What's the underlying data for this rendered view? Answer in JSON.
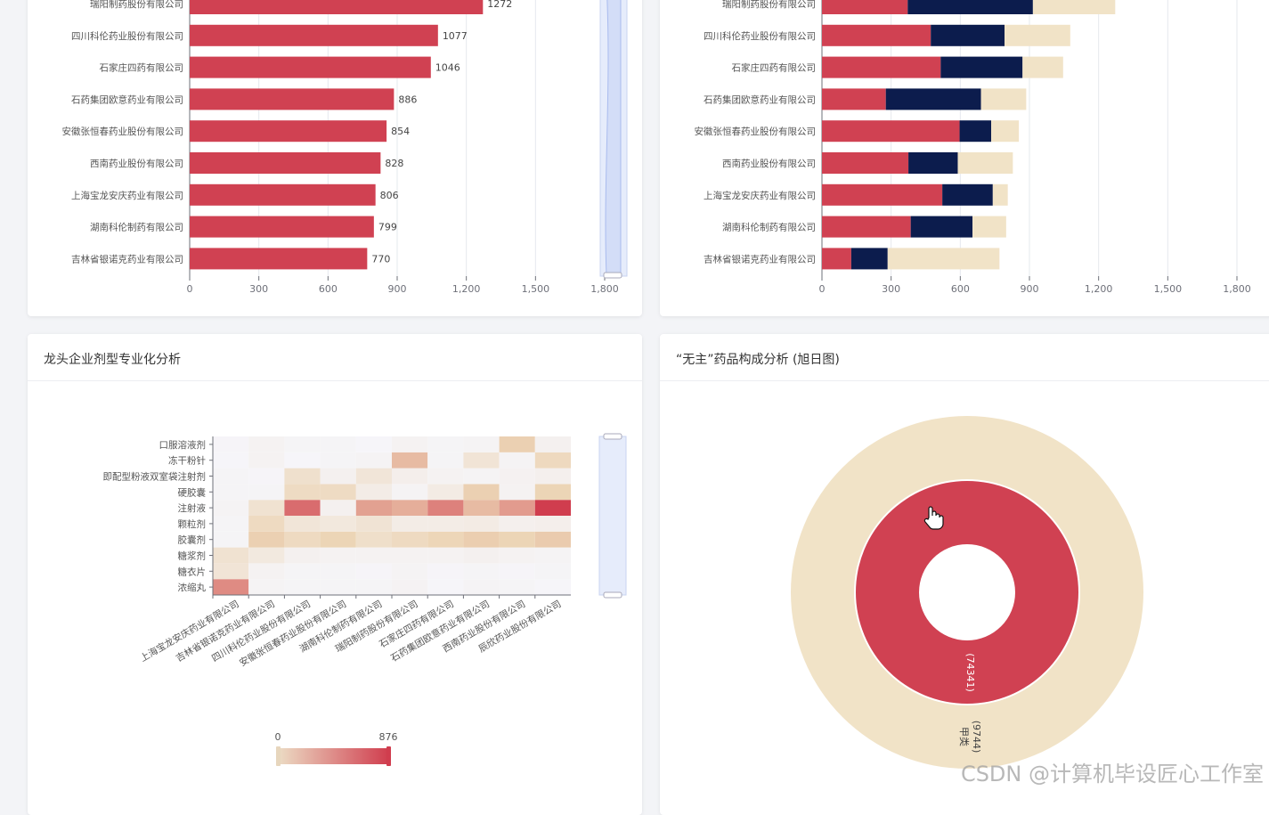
{
  "cards": {
    "heatmap_title": "龙头企业剂型专业化分析",
    "sunburst_title": "“无主”药品构成分析 (旭日图)"
  },
  "watermark": "CSDN @计算机毕设匠心工作室",
  "colors": {
    "red": "#d04152",
    "navy": "#0c1c4d",
    "beige": "#f1e3c7",
    "heat_low": "#f6f6fb",
    "heat_high": "#d03d4e"
  },
  "chart_data": [
    {
      "type": "bar",
      "orientation": "horizontal",
      "categories": [
        "瑞阳制药股份有限公司",
        "四川科伦药业股份有限公司",
        "石家庄四药有限公司",
        "石药集团欧意药业有限公司",
        "安徽张恒春药业股份有限公司",
        "西南药业股份有限公司",
        "上海宝龙安庆药业有限公司",
        "湖南科伦制药有限公司",
        "吉林省银诺克药业有限公司"
      ],
      "values": [
        1272,
        1077,
        1046,
        886,
        854,
        828,
        806,
        799,
        770
      ],
      "xlim": [
        0,
        1800
      ],
      "xticks": [
        "0",
        "300",
        "600",
        "900",
        "1,200",
        "1,500",
        "1,800"
      ],
      "grid": true,
      "has_zoom_slider": true
    },
    {
      "type": "bar",
      "orientation": "horizontal",
      "stacked": true,
      "categories": [
        "瑞阳制药股份有限公司",
        "四川科伦药业股份有限公司",
        "石家庄四药有限公司",
        "石药集团欧意药业有限公司",
        "安徽张恒春药业股份有限公司",
        "西南药业股份有限公司",
        "上海宝龙安庆药业有限公司",
        "湖南科伦制药有限公司",
        "吉林省银诺克药业有限公司"
      ],
      "series": [
        {
          "color": "#d04152",
          "values": [
            372,
            472,
            515,
            277,
            597,
            375,
            522,
            385,
            127
          ]
        },
        {
          "color": "#0c1c4d",
          "values": [
            543,
            320,
            355,
            413,
            137,
            214,
            219,
            268,
            158
          ]
        },
        {
          "color": "#f1e3c7",
          "values": [
            357,
            285,
            176,
            196,
            120,
            239,
            65,
            146,
            485
          ]
        }
      ],
      "xlim": [
        0,
        1800
      ],
      "xticks": [
        "0",
        "300",
        "600",
        "900",
        "1,200",
        "1,500",
        "1,800"
      ],
      "grid": true
    },
    {
      "type": "heatmap",
      "title": "龙头企业剂型专业化分析",
      "x": [
        "上海宝龙安庆药业有限公司",
        "吉林省银诺克药业有限公司",
        "四川科伦药业股份有限公司",
        "安徽张恒春药业股份有限公司",
        "湖南科伦制药有限公司",
        "瑞阳制药股份有限公司",
        "石家庄四药有限公司",
        "石药集团欧意药业有限公司",
        "西南药业股份有限公司",
        "辰欣药业股份有限公司"
      ],
      "y": [
        "浓缩丸",
        "糖衣片",
        "糖浆剂",
        "胶囊剂",
        "颗粒剂",
        "注射液",
        "硬胶囊",
        "即配型粉液双室袋注射剂",
        "冻干粉针",
        "口服溶液剂"
      ],
      "values": [
        [
          580,
          30,
          20,
          20,
          20,
          35,
          10,
          25,
          20,
          10
        ],
        [
          160,
          40,
          20,
          20,
          15,
          30,
          15,
          20,
          15,
          20
        ],
        [
          180,
          120,
          50,
          40,
          40,
          40,
          40,
          50,
          40,
          30
        ],
        [
          20,
          320,
          250,
          300,
          210,
          250,
          290,
          330,
          300,
          340
        ],
        [
          20,
          250,
          150,
          130,
          170,
          90,
          90,
          100,
          60,
          70
        ],
        [
          30,
          180,
          700,
          50,
          500,
          450,
          620,
          400,
          520,
          876
        ],
        [
          20,
          20,
          240,
          240,
          90,
          30,
          100,
          320,
          40,
          300
        ],
        [
          20,
          15,
          200,
          50,
          150,
          70,
          40,
          30,
          45,
          60
        ],
        [
          10,
          40,
          10,
          20,
          30,
          400,
          20,
          160,
          30,
          260
        ],
        [
          15,
          40,
          20,
          20,
          10,
          40,
          20,
          30,
          320,
          50
        ]
      ],
      "visual_map": {
        "min": 0,
        "max": 876,
        "min_label": "0",
        "max_label": "876"
      }
    },
    {
      "type": "sunburst",
      "title": "“无主”药品构成分析 (旭日图)",
      "rings": [
        {
          "level": "inner",
          "value": 74341,
          "label": "(74341)",
          "color": "#d04152"
        },
        {
          "level": "outer",
          "value": 9744,
          "label": "甲类",
          "value_label": "(9744)",
          "color": "#f1e3c7"
        }
      ]
    }
  ]
}
